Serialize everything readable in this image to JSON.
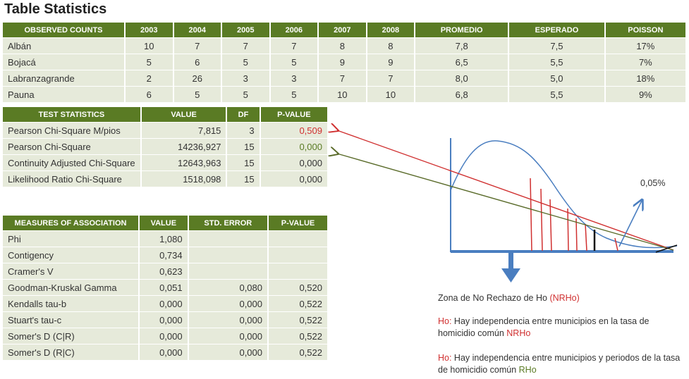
{
  "title": "Table Statistics",
  "observed": {
    "headers": [
      "OBSERVED COUNTS",
      "2003",
      "2004",
      "2005",
      "2006",
      "2007",
      "2008",
      "PROMEDIO",
      "ESPERADO",
      "POISSON"
    ],
    "rows": [
      [
        "Albán",
        "10",
        "7",
        "7",
        "7",
        "8",
        "8",
        "7,8",
        "7,5",
        "17%"
      ],
      [
        "Bojacá",
        "5",
        "6",
        "5",
        "5",
        "9",
        "9",
        "6,5",
        "5,5",
        "7%"
      ],
      [
        "Labranzagrande",
        "2",
        "26",
        "3",
        "3",
        "7",
        "7",
        "8,0",
        "5,0",
        "18%"
      ],
      [
        "Pauna",
        "6",
        "5",
        "5",
        "5",
        "10",
        "10",
        "6,8",
        "5,5",
        "9%"
      ]
    ]
  },
  "test": {
    "headers": [
      "TEST STATISTICS",
      "VALUE",
      "DF",
      "P-VALUE"
    ],
    "rows": [
      [
        "Pearson Chi-Square M/pios",
        "7,815",
        "3",
        "0,509"
      ],
      [
        "Pearson Chi-Square",
        "14236,927",
        "15",
        "0,000"
      ],
      [
        "Continuity Adjusted Chi-Square",
        "12643,963",
        "15",
        "0,000"
      ],
      [
        "Likelihood Ratio Chi-Square",
        "1518,098",
        "15",
        "0,000"
      ]
    ]
  },
  "measures": {
    "headers": [
      "MEASURES OF ASSOCIATION",
      "VALUE",
      "STD. ERROR",
      "P-VALUE"
    ],
    "rows": [
      [
        "Phi",
        "1,080",
        "",
        ""
      ],
      [
        "Contigency",
        "0,734",
        "",
        ""
      ],
      [
        "Cramer's V",
        "0,623",
        "",
        ""
      ],
      [
        "Goodman-Kruskal Gamma",
        "0,051",
        "0,080",
        "0,520"
      ],
      [
        "Kendalls tau-b",
        "0,000",
        "0,000",
        "0,522"
      ],
      [
        "Stuart's tau-c",
        "0,000",
        "0,000",
        "0,522"
      ],
      [
        "Somer's D (C|R)",
        "0,000",
        "0,000",
        "0,522"
      ],
      [
        "Somer's D (R|C)",
        "0,000",
        "0,000",
        "0,522"
      ]
    ]
  },
  "diagram": {
    "label_pct": "0,05%",
    "colors": {
      "curve": "#4a7ec0",
      "red": "#d03030",
      "olive": "#5a6b2a",
      "axis": "#4a7ec0"
    }
  },
  "notes": {
    "zona_text": "Zona de No Rechazo de Ho ",
    "zona_abbr": "(NRHo)",
    "ho1_prefix": "Ho:",
    "ho1_text": " Hay independencia entre municipios en la tasa de homicidio común ",
    "ho1_abbr": "NRHo",
    "ho2_prefix": "Ho:",
    "ho2_text": " Hay independencia entre municipios y periodos de la tasa de homicidio común ",
    "ho2_abbr": "RHo"
  }
}
